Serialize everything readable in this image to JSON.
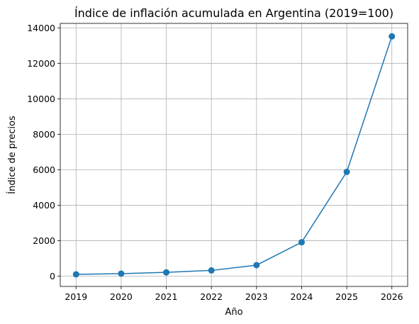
{
  "chart_data": {
    "type": "line",
    "title": "Índice de inflación acumulada en Argentina (2019=100)",
    "xlabel": "Año",
    "ylabel": "Índice de precios",
    "x": [
      2019,
      2020,
      2021,
      2022,
      2023,
      2024,
      2025,
      2026
    ],
    "series": [
      {
        "values": [
          100,
          142,
          214,
          322,
          620,
          1910,
          5880,
          13520
        ]
      }
    ],
    "xlim": [
      2018.65,
      2026.35
    ],
    "ylim": [
      -580,
      14250
    ],
    "xticks": [
      "2019",
      "2020",
      "2021",
      "2022",
      "2023",
      "2024",
      "2025",
      "2026"
    ],
    "yticks": [
      0,
      2000,
      4000,
      6000,
      8000,
      10000,
      12000,
      14000
    ],
    "ytick_labels": [
      "0",
      "2000",
      "4000",
      "6000",
      "8000",
      "10000",
      "12000",
      "14000"
    ],
    "grid": true,
    "line_color": "#1f77b4",
    "marker": "circle"
  }
}
